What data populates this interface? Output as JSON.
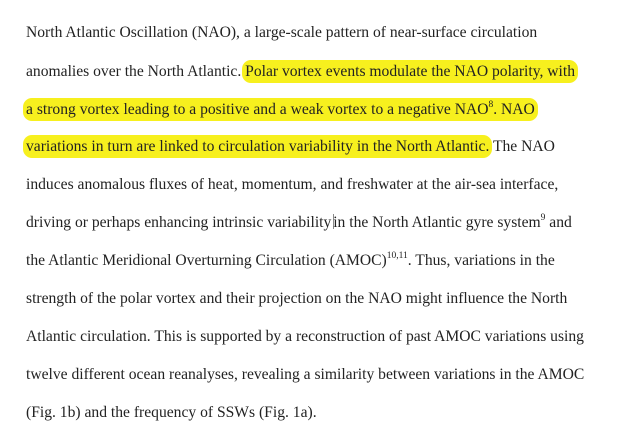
{
  "paragraph": {
    "line1": "North Atlantic Oscillation (NAO), a large-scale pattern of near-surface circulation",
    "line2_plain": "anomalies over the North Atlantic.",
    "line2_highlight": "Polar vortex events modulate the NAO polarity, with",
    "line3_highlight": "a strong vortex leading to a positive and a weak vortex to a negative NAO",
    "line3_ref": "8",
    "line3_highlight_tail": ". NAO",
    "line4_highlight": "variations in turn are linked to circulation variability in the North Atlantic.",
    "line4_plain": "The NAO",
    "line5": "induces anomalous fluxes of heat, momentum, and freshwater at the air-sea interface,",
    "line6_a": "driving or perhaps enhancing intrinsic variability ",
    "line6_b": "in the North Atlantic gyre system",
    "line6_ref": "9",
    "line6_c": " and",
    "line7_a": "the Atlantic Meridional Overturning Circulation (AMOC)",
    "line7_ref": "10,11",
    "line7_b": ". Thus, variations in the",
    "line8": "strength of the polar vortex and their projection on the NAO might influence the North",
    "line9": "Atlantic circulation. This is supported by a reconstruction of past AMOC variations using",
    "line10": "twelve different ocean reanalyses, revealing a similarity between variations in the AMOC",
    "line11": "(Fig. 1b) and the frequency of SSWs (Fig. 1a)."
  },
  "colors": {
    "highlight": "#f7f01e",
    "text": "#222222"
  }
}
